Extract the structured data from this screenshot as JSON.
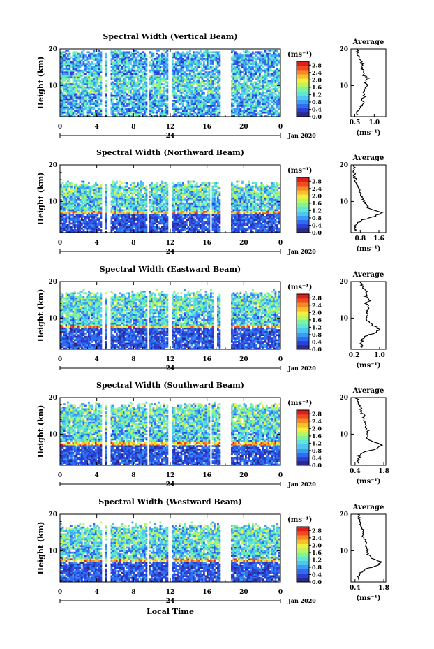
{
  "figure": {
    "xlabel": "Local Time",
    "date_label": "Jan 2020",
    "day_label": "24",
    "colorbar_unit": "(ms⁻¹)",
    "avg_title": "Average",
    "ylabel": "Height (km)"
  },
  "chart_data": [
    {
      "type": "heatmap",
      "title": "Spectral Width (Vertical Beam)",
      "x_ticks": [
        "0",
        "4",
        "8",
        "12",
        "16",
        "20",
        "0"
      ],
      "y_ticks": [
        "10",
        "20"
      ],
      "xlim": [
        0,
        24
      ],
      "ylim": [
        1.5,
        20
      ],
      "colorbar": {
        "ticks": [
          "0.0",
          "0.4",
          "0.8",
          "1.2",
          "1.6",
          "2.0",
          "2.4",
          "2.8"
        ],
        "range": [
          0,
          3.0
        ]
      },
      "gaps_hours": [
        [
          4.5,
          4.9
        ],
        [
          5.2,
          5.5
        ],
        [
          9.5,
          9.8
        ],
        [
          11.8,
          12.1
        ],
        [
          17.6,
          18.7
        ]
      ],
      "profile": {
        "xlabel": "(ms⁻¹)",
        "xticks": [
          "0.5",
          "1.0"
        ],
        "xlim": [
          0.4,
          1.3
        ],
        "points": [
          [
            0.58,
            2
          ],
          [
            0.55,
            3
          ],
          [
            0.62,
            4
          ],
          [
            0.72,
            5
          ],
          [
            0.68,
            6
          ],
          [
            0.75,
            7
          ],
          [
            0.72,
            8
          ],
          [
            0.78,
            9
          ],
          [
            0.82,
            10
          ],
          [
            0.76,
            11
          ],
          [
            0.84,
            12
          ],
          [
            0.7,
            13
          ],
          [
            0.74,
            14
          ],
          [
            0.66,
            15
          ],
          [
            0.7,
            16
          ],
          [
            0.62,
            17
          ],
          [
            0.6,
            18
          ],
          [
            0.58,
            19
          ],
          [
            0.56,
            20
          ]
        ]
      }
    },
    {
      "type": "heatmap",
      "title": "Spectral Width (Northward Beam)",
      "x_ticks": [
        "0",
        "4",
        "8",
        "12",
        "16",
        "20",
        "0"
      ],
      "y_ticks": [
        "10",
        "20"
      ],
      "xlim": [
        0,
        24
      ],
      "ylim": [
        1.5,
        20
      ],
      "colorbar": {
        "ticks": [
          "0.0",
          "0.4",
          "0.8",
          "1.2",
          "1.6",
          "2.0",
          "2.4",
          "2.8"
        ],
        "range": [
          0,
          3.0
        ]
      },
      "gaps_hours": [
        [
          4.5,
          4.9
        ],
        [
          5.2,
          5.5
        ],
        [
          9.5,
          9.8
        ],
        [
          11.8,
          12.1
        ],
        [
          16.3,
          16.6
        ],
        [
          17.6,
          18.7
        ]
      ],
      "profile": {
        "xlabel": "(ms⁻¹)",
        "xticks": [
          "0.8",
          "1.6"
        ],
        "xlim": [
          0.4,
          1.9
        ],
        "points": [
          [
            0.6,
            2
          ],
          [
            0.55,
            3
          ],
          [
            0.65,
            4
          ],
          [
            0.9,
            5
          ],
          [
            1.45,
            6
          ],
          [
            1.7,
            7
          ],
          [
            1.2,
            8
          ],
          [
            1.05,
            9
          ],
          [
            0.95,
            10
          ],
          [
            0.9,
            11
          ],
          [
            0.8,
            12
          ],
          [
            0.78,
            13
          ],
          [
            0.7,
            14
          ],
          [
            0.6,
            15
          ],
          [
            0.58,
            16
          ],
          [
            0.56,
            17
          ],
          [
            0.55,
            18
          ],
          [
            0.54,
            19
          ],
          [
            0.52,
            20
          ]
        ]
      }
    },
    {
      "type": "heatmap",
      "title": "Spectral Width (Eastward Beam)",
      "x_ticks": [
        "0",
        "4",
        "8",
        "12",
        "16",
        "20",
        "0"
      ],
      "y_ticks": [
        "10",
        "20"
      ],
      "xlim": [
        0,
        24
      ],
      "ylim": [
        1.5,
        20
      ],
      "colorbar": {
        "ticks": [
          "0.0",
          "0.4",
          "0.8",
          "1.2",
          "1.6",
          "2.0",
          "2.4",
          "2.8"
        ],
        "range": [
          0,
          3.0
        ]
      },
      "gaps_hours": [
        [
          4.5,
          4.9
        ],
        [
          5.2,
          5.5
        ],
        [
          9.5,
          9.8
        ],
        [
          11.8,
          12.1
        ],
        [
          16.8,
          17.1
        ],
        [
          17.6,
          18.7
        ]
      ],
      "profile": {
        "xlabel": "(ms⁻¹)",
        "xticks": [
          "0.2",
          "1.0"
        ],
        "xlim": [
          0.1,
          1.2
        ],
        "points": [
          [
            0.45,
            2
          ],
          [
            0.4,
            3
          ],
          [
            0.45,
            4
          ],
          [
            0.5,
            5
          ],
          [
            0.85,
            6
          ],
          [
            1.0,
            7
          ],
          [
            0.8,
            8
          ],
          [
            0.65,
            9
          ],
          [
            0.6,
            10
          ],
          [
            0.62,
            11
          ],
          [
            0.6,
            12
          ],
          [
            0.66,
            13
          ],
          [
            0.58,
            14
          ],
          [
            0.7,
            15
          ],
          [
            0.55,
            16
          ],
          [
            0.6,
            17
          ],
          [
            0.5,
            18
          ],
          [
            0.45,
            19
          ],
          [
            0.42,
            20
          ]
        ]
      }
    },
    {
      "type": "heatmap",
      "title": "Spectral Width (Southward Beam)",
      "x_ticks": [
        "0",
        "4",
        "8",
        "12",
        "16",
        "20",
        "0"
      ],
      "y_ticks": [
        "10",
        "20"
      ],
      "xlim": [
        0,
        24
      ],
      "ylim": [
        1.5,
        20
      ],
      "colorbar": {
        "ticks": [
          "0.0",
          "0.4",
          "0.8",
          "1.2",
          "1.6",
          "2.0",
          "2.4",
          "2.8"
        ],
        "range": [
          0,
          3.0
        ]
      },
      "gaps_hours": [
        [
          4.5,
          4.9
        ],
        [
          5.2,
          5.5
        ],
        [
          9.5,
          9.8
        ],
        [
          11.8,
          12.1
        ],
        [
          16.3,
          16.6
        ],
        [
          17.6,
          18.7
        ]
      ],
      "profile": {
        "xlabel": "(ms⁻¹)",
        "xticks": [
          "0.4",
          "1.8"
        ],
        "xlim": [
          0.2,
          1.9
        ],
        "points": [
          [
            0.6,
            2
          ],
          [
            0.55,
            3
          ],
          [
            0.6,
            4
          ],
          [
            0.8,
            5
          ],
          [
            1.4,
            6
          ],
          [
            1.75,
            7
          ],
          [
            1.2,
            8
          ],
          [
            1.0,
            9
          ],
          [
            0.95,
            10
          ],
          [
            1.0,
            11
          ],
          [
            0.9,
            12
          ],
          [
            0.95,
            13
          ],
          [
            0.8,
            14
          ],
          [
            0.85,
            15
          ],
          [
            0.7,
            16
          ],
          [
            0.68,
            17
          ],
          [
            0.6,
            18
          ],
          [
            0.55,
            19
          ],
          [
            0.5,
            20
          ]
        ]
      }
    },
    {
      "type": "heatmap",
      "title": "Spectral Width (Westward Beam)",
      "x_ticks": [
        "0",
        "4",
        "8",
        "12",
        "16",
        "20",
        "0"
      ],
      "y_ticks": [
        "10",
        "20"
      ],
      "xlim": [
        0,
        24
      ],
      "ylim": [
        1.5,
        20
      ],
      "colorbar": {
        "ticks": [
          "0.0",
          "0.4",
          "0.8",
          "1.2",
          "1.6",
          "2.0",
          "2.4",
          "2.8"
        ],
        "range": [
          0,
          3.0
        ]
      },
      "gaps_hours": [
        [
          4.5,
          4.9
        ],
        [
          5.2,
          5.5
        ],
        [
          9.5,
          9.8
        ],
        [
          11.8,
          12.1
        ],
        [
          17.6,
          18.7
        ]
      ],
      "profile": {
        "xlabel": "(ms⁻¹)",
        "xticks": [
          "0.4",
          "1.8"
        ],
        "xlim": [
          0.2,
          1.9
        ],
        "points": [
          [
            0.6,
            2
          ],
          [
            0.55,
            3
          ],
          [
            0.65,
            4
          ],
          [
            0.9,
            5
          ],
          [
            1.5,
            6
          ],
          [
            1.7,
            7
          ],
          [
            1.2,
            8
          ],
          [
            1.05,
            9
          ],
          [
            1.0,
            10
          ],
          [
            0.95,
            11
          ],
          [
            1.0,
            12
          ],
          [
            0.9,
            13
          ],
          [
            0.8,
            14
          ],
          [
            0.85,
            15
          ],
          [
            0.75,
            16
          ],
          [
            0.7,
            17
          ],
          [
            0.65,
            18
          ],
          [
            0.6,
            19
          ],
          [
            0.55,
            20
          ]
        ]
      }
    }
  ]
}
